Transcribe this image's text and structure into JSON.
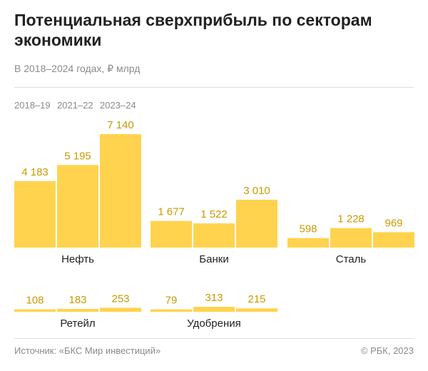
{
  "title": "Потенциальная сверхприбыль по секторам экономики",
  "subtitle": "В 2018–2024 годах, ₽ млрд",
  "source": "Источник: «БКС Мир инвестиций»",
  "copyright": "© РБК, 2023",
  "colors": {
    "bar": "#ffd34e",
    "value_text": "#c79a00",
    "text": "#222222",
    "muted": "#8a8a8a"
  },
  "chart_data": {
    "type": "bar",
    "categories": [
      "2018–19",
      "2021–22",
      "2023–24"
    ],
    "groups": [
      {
        "name": "Нефть",
        "values": [
          4183,
          5195,
          7140
        ],
        "value_labels": [
          "4 183",
          "5 195",
          "7 140"
        ]
      },
      {
        "name": "Банки",
        "values": [
          1677,
          1522,
          3010
        ],
        "value_labels": [
          "1 677",
          "1 522",
          "3 010"
        ]
      },
      {
        "name": "Сталь",
        "values": [
          598,
          1228,
          969
        ],
        "value_labels": [
          "598",
          "1 228",
          "969"
        ]
      },
      {
        "name": "Ретейл",
        "values": [
          108,
          183,
          253
        ],
        "value_labels": [
          "108",
          "183",
          "253"
        ]
      },
      {
        "name": "Удобрения",
        "values": [
          79,
          313,
          215
        ],
        "value_labels": [
          "79",
          "313",
          "215"
        ]
      }
    ],
    "title": "Потенциальная сверхприбыль по секторам экономики",
    "ylabel": "₽ млрд",
    "grid": false
  }
}
